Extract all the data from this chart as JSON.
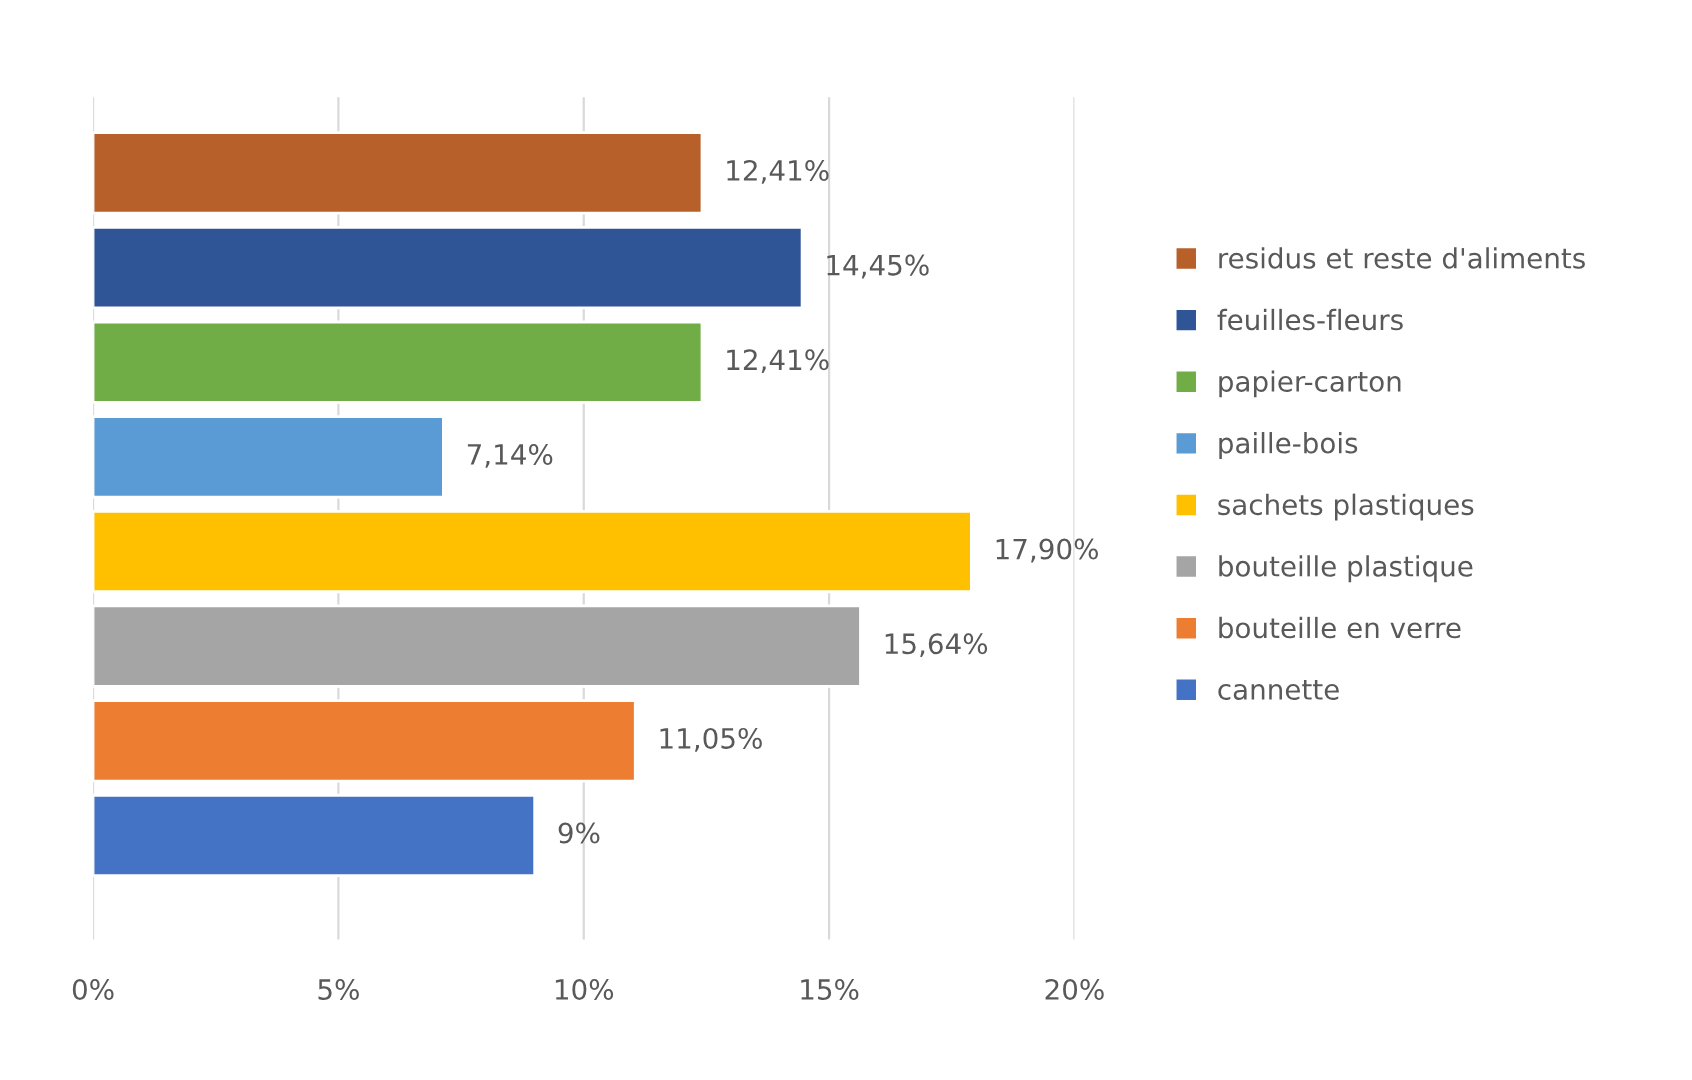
{
  "chart_data": {
    "type": "bar",
    "orientation": "horizontal",
    "categories": [
      null,
      null,
      null,
      null,
      null,
      null,
      null,
      null
    ],
    "series": [
      {
        "name": "residus et reste d'aliments",
        "color": "#b8602a",
        "values": [
          12.41,
          null,
          null,
          null,
          null,
          null,
          null,
          null
        ],
        "value_labels": [
          "12,41%",
          null,
          null,
          null,
          null,
          null,
          null,
          null
        ]
      },
      {
        "name": "feuilles-fleurs",
        "color": "#2f5597",
        "values": [
          null,
          14.45,
          null,
          null,
          null,
          null,
          null,
          null
        ],
        "value_labels": [
          null,
          "14,45%",
          null,
          null,
          null,
          null,
          null,
          null
        ]
      },
      {
        "name": "papier-carton",
        "color": "#70ad47",
        "values": [
          null,
          null,
          12.41,
          null,
          null,
          null,
          null,
          null
        ],
        "value_labels": [
          null,
          null,
          "12,41%",
          null,
          null,
          null,
          null,
          null
        ]
      },
      {
        "name": "paille-bois",
        "color": "#5b9bd5",
        "values": [
          null,
          null,
          null,
          7.14,
          null,
          null,
          null,
          null
        ],
        "value_labels": [
          null,
          null,
          null,
          "7,14%",
          null,
          null,
          null,
          null
        ]
      },
      {
        "name": "sachets plastiques",
        "color": "#ffc000",
        "values": [
          null,
          null,
          null,
          null,
          17.9,
          null,
          null,
          null
        ],
        "value_labels": [
          null,
          null,
          null,
          null,
          "17,90%",
          null,
          null,
          null
        ]
      },
      {
        "name": "bouteille plastique",
        "color": "#a5a5a5",
        "values": [
          null,
          null,
          null,
          null,
          null,
          15.64,
          null,
          null
        ],
        "value_labels": [
          null,
          null,
          null,
          null,
          null,
          "15,64%",
          null,
          null
        ]
      },
      {
        "name": "bouteille en verre",
        "color": "#ed7d31",
        "values": [
          null,
          null,
          null,
          null,
          null,
          null,
          11.05,
          null
        ],
        "value_labels": [
          null,
          null,
          null,
          null,
          null,
          null,
          "11,05%",
          null
        ]
      },
      {
        "name": "cannette",
        "color": "#4472c4",
        "values": [
          null,
          null,
          null,
          null,
          null,
          null,
          null,
          9
        ],
        "value_labels": [
          null,
          null,
          null,
          null,
          null,
          null,
          null,
          "9%"
        ]
      }
    ],
    "xlim": [
      0,
      20
    ],
    "xticks": [
      {
        "value": 0,
        "label": "0%"
      },
      {
        "value": 5,
        "label": "5%"
      },
      {
        "value": 10,
        "label": "10%"
      },
      {
        "value": 15,
        "label": "15%"
      },
      {
        "value": 20,
        "label": "20%"
      }
    ],
    "grid": "x",
    "legend": "right"
  }
}
